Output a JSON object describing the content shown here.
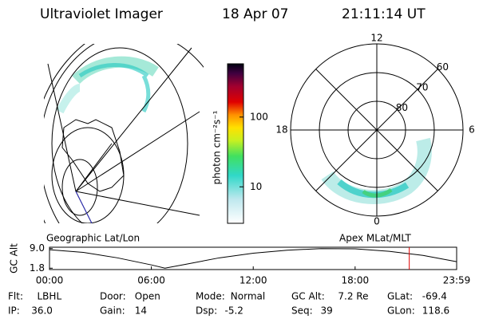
{
  "header": {
    "instrument": "Ultraviolet Imager",
    "date": "18 Apr 07",
    "time": "21:11:14 UT"
  },
  "left_map": {
    "label": "Geographic Lat/Lon"
  },
  "colorbar": {
    "label": "photon cm⁻²s⁻¹",
    "log_scale": true,
    "lim": [
      3,
      580
    ],
    "ticks": [
      10,
      100
    ]
  },
  "right_map": {
    "label": "Apex MLat/MLT",
    "mlt_labels": [
      12,
      18,
      6,
      0
    ],
    "lat_rings": [
      80,
      70,
      60
    ]
  },
  "altitude_plot": {
    "ylabel": "GC Alt",
    "ylim": [
      1.3,
      9.5
    ],
    "yticks": [
      {
        "value": 9,
        "label": "9.0"
      },
      1.8
    ],
    "xlim": [
      0,
      23.98
    ],
    "xticks": [
      {
        "value": 0,
        "label": "00:00"
      },
      {
        "value": 6,
        "label": "06:00"
      },
      {
        "value": 12,
        "label": "12:00"
      },
      {
        "value": 18,
        "label": "18:00"
      },
      {
        "value": 23.98,
        "label": "23:59"
      }
    ],
    "x": [
      0,
      2,
      4,
      6,
      6.8,
      8,
      10,
      12,
      14,
      16,
      18,
      20,
      22,
      23.98
    ],
    "values": [
      8.6,
      7.6,
      5.6,
      3.0,
      1.8,
      3.2,
      5.6,
      7.3,
      8.4,
      9.0,
      8.9,
      8.0,
      6.5,
      4.2
    ],
    "current_time": 21.19,
    "marker_color": "#e00000"
  },
  "footer": [
    [
      {
        "label": "Flt:",
        "value": "LBHL"
      },
      {
        "label": "Door:",
        "value": "Open"
      },
      {
        "label": "Mode:",
        "value": "Normal"
      },
      {
        "label": "GC Alt:",
        "value": "7.2 Re"
      },
      {
        "label": "GLat:",
        "value": "-69.4"
      }
    ],
    [
      {
        "label": "IP:",
        "value": "36.0"
      },
      {
        "label": "Gain:",
        "value": "14"
      },
      {
        "label": "Dsp:",
        "value": "-5.2"
      },
      {
        "label": "Seq:",
        "value": "39"
      },
      {
        "label": "GLon:",
        "value": "118.6"
      }
    ]
  ]
}
